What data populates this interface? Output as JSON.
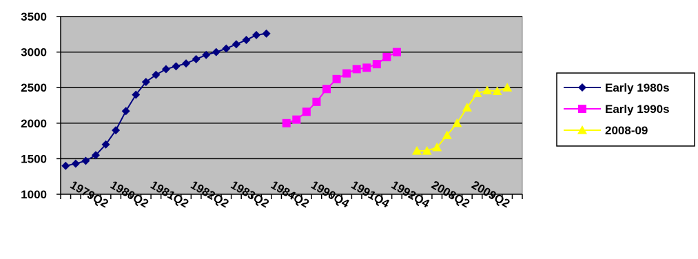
{
  "chart_data": {
    "type": "line",
    "title": "",
    "xlabel": "",
    "ylabel": "",
    "ylim": [
      1000,
      3500
    ],
    "yticks": [
      1000,
      1500,
      2000,
      2500,
      3000,
      3500
    ],
    "grid": "horizontal",
    "plot_background": "#c0c0c0",
    "legend_position": "right",
    "slot_count": 46,
    "category_labels": [
      "1979Q2",
      "1980Q2",
      "1981Q2",
      "1982Q2",
      "1983Q2",
      "1984Q2",
      "1990Q4",
      "1991Q4",
      "1992Q4",
      "2008Q2",
      "2009Q2"
    ],
    "series": [
      {
        "name": "Early 1980s",
        "color": "#000080",
        "marker": "diamond",
        "start_slot": 0,
        "values": [
          1400,
          1430,
          1470,
          1550,
          1700,
          1900,
          2170,
          2400,
          2580,
          2680,
          2760,
          2800,
          2840,
          2900,
          2960,
          3000,
          3050,
          3110,
          3170,
          3240,
          3260
        ]
      },
      {
        "name": "Early 1990s",
        "color": "#ff00ff",
        "marker": "square",
        "start_slot": 22,
        "values": [
          2000,
          2050,
          2160,
          2300,
          2480,
          2620,
          2700,
          2760,
          2780,
          2830,
          2930,
          3000
        ]
      },
      {
        "name": "2008-09",
        "color": "#ffff00",
        "marker": "triangle",
        "start_slot": 35,
        "values": [
          1610,
          1610,
          1660,
          1830,
          2000,
          2220,
          2420,
          2460,
          2450,
          2500
        ]
      }
    ]
  }
}
